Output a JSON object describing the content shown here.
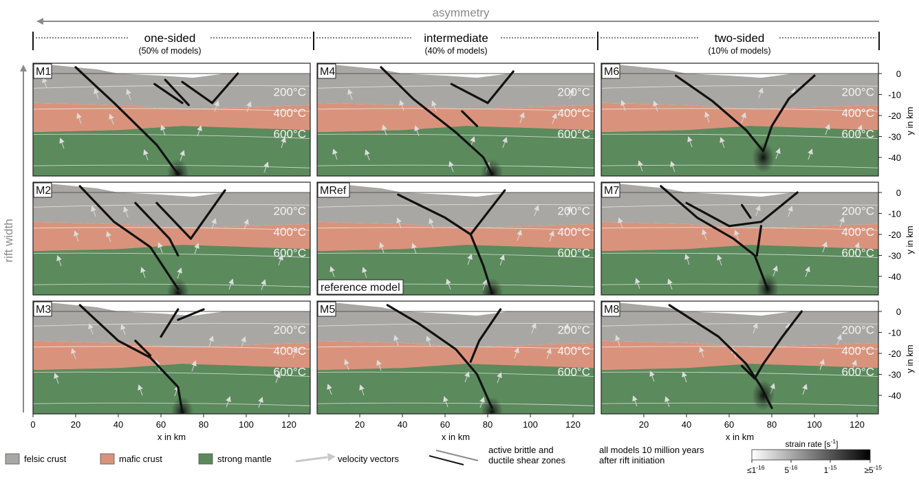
{
  "header": {
    "asymmetry_label": "asymmetry",
    "rift_width_label": "rift width",
    "categories": [
      {
        "title": "one-sided",
        "subtitle": "(50% of models)"
      },
      {
        "title": "intermediate",
        "subtitle": "(40% of models)"
      },
      {
        "title": "two-sided",
        "subtitle": "(10% of models)"
      }
    ]
  },
  "panels": [
    {
      "label": "M1",
      "faults": [
        [
          [
            20,
            3
          ],
          [
            38,
            -14
          ],
          [
            58,
            -34
          ],
          [
            68,
            -48
          ]
        ],
        [
          [
            57,
            -5
          ],
          [
            70,
            -14
          ]
        ],
        [
          [
            62,
            -3
          ],
          [
            73,
            -15
          ]
        ],
        [
          [
            70,
            -4
          ],
          [
            84,
            -14
          ]
        ],
        [
          [
            84,
            -14
          ],
          [
            96,
            0
          ]
        ]
      ],
      "focus": [
        68,
        -48
      ]
    },
    {
      "label": "M4",
      "faults": [
        [
          [
            30,
            3
          ],
          [
            45,
            -12
          ],
          [
            65,
            -28
          ],
          [
            78,
            -40
          ],
          [
            82,
            -48
          ]
        ],
        [
          [
            63,
            -5
          ],
          [
            80,
            -14
          ]
        ],
        [
          [
            80,
            -14
          ],
          [
            92,
            1
          ]
        ],
        [
          [
            68,
            -18
          ],
          [
            75,
            -25
          ]
        ]
      ],
      "focus": [
        82,
        -48
      ]
    },
    {
      "label": "M6",
      "faults": [
        [
          [
            35,
            -1
          ],
          [
            52,
            -13
          ],
          [
            68,
            -27
          ],
          [
            76,
            -37
          ]
        ],
        [
          [
            100,
            -1
          ],
          [
            88,
            -12
          ],
          [
            80,
            -25
          ],
          [
            76,
            -37
          ]
        ]
      ],
      "focus": [
        76,
        -40
      ]
    },
    {
      "label": "M2",
      "faults": [
        [
          [
            22,
            3
          ],
          [
            38,
            -14
          ],
          [
            55,
            -26
          ],
          [
            68,
            -46
          ]
        ],
        [
          [
            48,
            -5
          ],
          [
            64,
            -22
          ],
          [
            68,
            -30
          ]
        ],
        [
          [
            58,
            -5
          ],
          [
            74,
            -22
          ]
        ],
        [
          [
            74,
            -22
          ],
          [
            90,
            1
          ]
        ]
      ],
      "focus": [
        68,
        -48
      ]
    },
    {
      "label": "MRef",
      "faults": [
        [
          [
            38,
            -1
          ],
          [
            60,
            -12
          ],
          [
            72,
            -20
          ],
          [
            78,
            -35
          ],
          [
            82,
            -48
          ]
        ],
        [
          [
            72,
            -20
          ],
          [
            88,
            1
          ]
        ]
      ],
      "focus": [
        82,
        -48
      ]
    },
    {
      "label": "M7",
      "faults": [
        [
          [
            28,
            3
          ],
          [
            45,
            -12
          ],
          [
            62,
            -22
          ],
          [
            72,
            -30
          ],
          [
            78,
            -46
          ]
        ],
        [
          [
            40,
            -5
          ],
          [
            60,
            -16
          ],
          [
            75,
            -14
          ]
        ],
        [
          [
            75,
            -14
          ],
          [
            92,
            0
          ]
        ],
        [
          [
            73,
            -30
          ],
          [
            75,
            -16
          ]
        ],
        [
          [
            66,
            -6
          ],
          [
            70,
            -12
          ]
        ]
      ],
      "focus": [
        78,
        -46
      ]
    },
    {
      "label": "M3",
      "faults": [
        [
          [
            22,
            3
          ],
          [
            40,
            -14
          ],
          [
            55,
            -22
          ],
          [
            68,
            -36
          ],
          [
            70,
            -48
          ]
        ],
        [
          [
            48,
            -14
          ],
          [
            55,
            -21
          ]
        ],
        [
          [
            60,
            -12
          ],
          [
            68,
            1
          ]
        ],
        [
          [
            68,
            -4
          ],
          [
            80,
            1
          ]
        ]
      ],
      "focus": [
        70,
        -48
      ]
    },
    {
      "label": "M5",
      "faults": [
        [
          [
            33,
            3
          ],
          [
            48,
            -6
          ],
          [
            65,
            -18
          ],
          [
            75,
            -30
          ],
          [
            82,
            -46
          ]
        ],
        [
          [
            72,
            -24
          ],
          [
            76,
            -14
          ],
          [
            86,
            1
          ]
        ]
      ],
      "focus": [
        82,
        -48
      ]
    },
    {
      "label": "M8",
      "faults": [
        [
          [
            32,
            3
          ],
          [
            55,
            -12
          ],
          [
            68,
            -25
          ],
          [
            75,
            -36
          ],
          [
            80,
            -46
          ]
        ],
        [
          [
            94,
            0
          ],
          [
            85,
            -12
          ],
          [
            76,
            -25
          ],
          [
            72,
            -32
          ]
        ],
        [
          [
            72,
            -32
          ],
          [
            66,
            -26
          ]
        ]
      ],
      "focus": [
        76,
        -40
      ]
    }
  ],
  "reference_label": "reference model",
  "isotherms": [
    "200°C",
    "400°C",
    "600°C"
  ],
  "x_axis": {
    "label": "x in km",
    "ticks_left": [
      "0",
      "20",
      "40",
      "60",
      "80",
      "100",
      "120"
    ],
    "ticks_other": [
      "20",
      "40",
      "60",
      "80",
      "100",
      "120"
    ],
    "tick_values_left": [
      0,
      20,
      40,
      60,
      80,
      100,
      120
    ],
    "tick_values_other": [
      20,
      40,
      60,
      80,
      100,
      120
    ]
  },
  "y_axis": {
    "label": "y in km",
    "ticks": [
      "0",
      "-10",
      "-20",
      "-30",
      "-40"
    ],
    "tick_values": [
      0,
      -10,
      -20,
      -30,
      -40
    ]
  },
  "legend": {
    "felsic": "felsic crust",
    "mafic": "mafic crust",
    "mantle": "strong mantle",
    "velocity": "velocity vectors",
    "shear_line1": "active brittle and",
    "shear_line2": "ductile shear zones",
    "time_line1": "all models 10 million years",
    "time_line2": "after rift initiation",
    "strain_title": "strain rate [s",
    "strain_title_exp": "-1",
    "strain_title_end": "]",
    "strain_ticks": [
      {
        "base": "≤1",
        "exp": "-16"
      },
      {
        "base": "5",
        "exp": "-16"
      },
      {
        "base": "1",
        "exp": "-15"
      },
      {
        "base": "≥5",
        "exp": "-15"
      }
    ]
  },
  "colors": {
    "felsic": "#a9a7a3",
    "mafic": "#d9937c",
    "mantle": "#5b8a5c",
    "shear": "#111111",
    "arrow": "#8a8a8a"
  }
}
